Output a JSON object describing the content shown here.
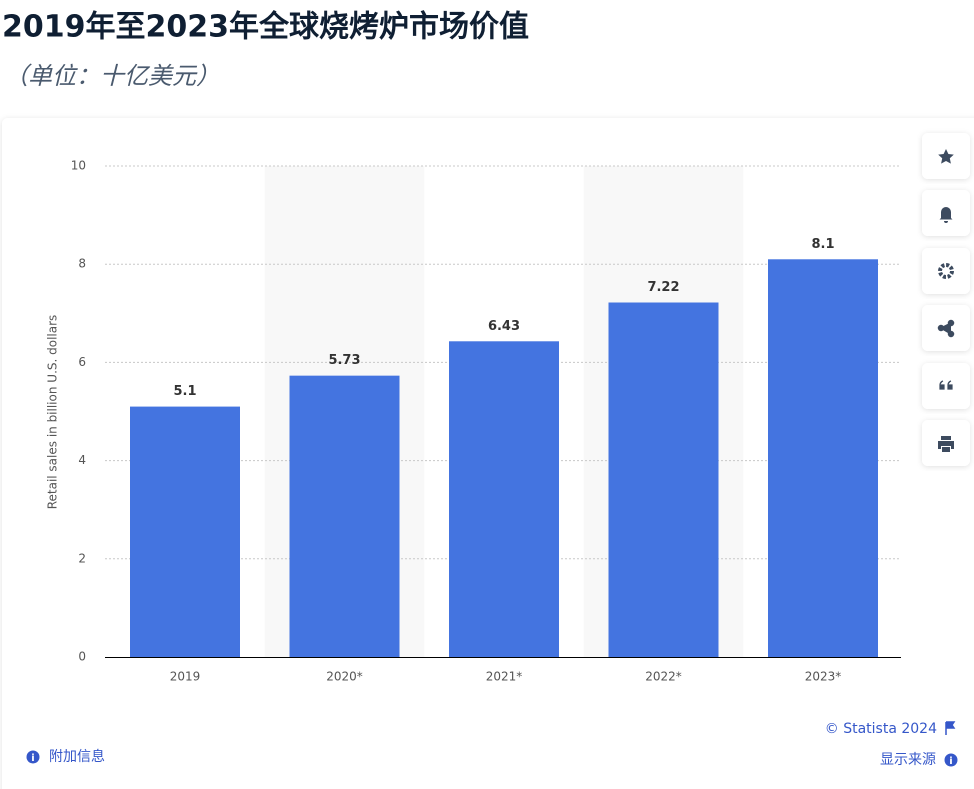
{
  "chart_data": {
    "type": "bar",
    "title": "2019年至2023年全球烧烤炉市场价值",
    "subtitle": "（单位：十亿美元）",
    "y_label": "Retail sales in billion U.S. dollars",
    "categories": [
      "2019",
      "2020*",
      "2021*",
      "2022*",
      "2023*"
    ],
    "values": [
      5.1,
      5.73,
      6.43,
      7.22,
      8.1
    ],
    "color": "#4474e0",
    "ylim": [
      0,
      10
    ],
    "yticks": [
      0,
      2,
      4,
      6,
      8,
      10
    ],
    "grid": true
  },
  "footer": {
    "copyright": "© Statista 2024",
    "additional_info": "附加信息",
    "show_source": "显示来源"
  }
}
